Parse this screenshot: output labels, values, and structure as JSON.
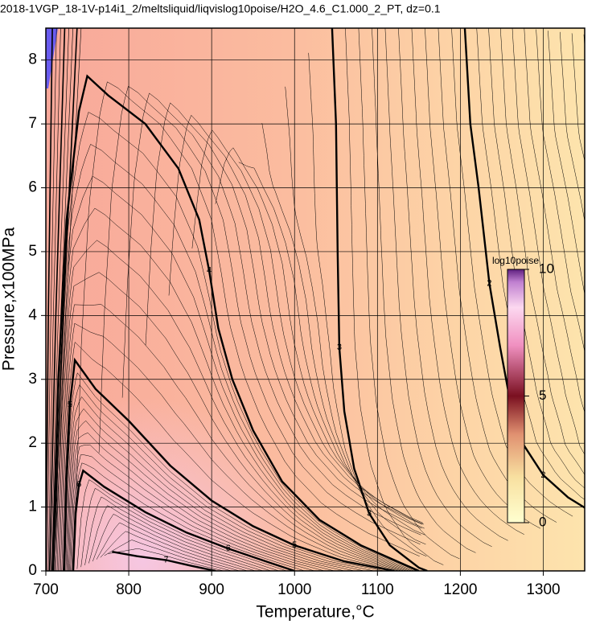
{
  "chart_data": {
    "type": "contour",
    "title": "2018-1VGP_18-1V-p14i1_2/meltsliquid/liqvislog10poise/H2O_4.6_C1.000_2_PT, dz=0.1",
    "x_label": "Temperature,°C",
    "y_label": "Pressure,x100MPa",
    "xlim": [
      700,
      1350
    ],
    "ylim": [
      0,
      8.5
    ],
    "xticks": [
      700,
      800,
      900,
      1000,
      1100,
      1200,
      1300
    ],
    "yticks": [
      0,
      1,
      2,
      3,
      4,
      5,
      6,
      7,
      8
    ],
    "grid": true,
    "contour_levels": [
      2,
      3,
      4,
      5,
      6,
      7
    ],
    "colorbar": {
      "label": "log10poise",
      "lim": [
        0,
        10
      ],
      "ticks": [
        0,
        5,
        10
      ]
    }
  }
}
